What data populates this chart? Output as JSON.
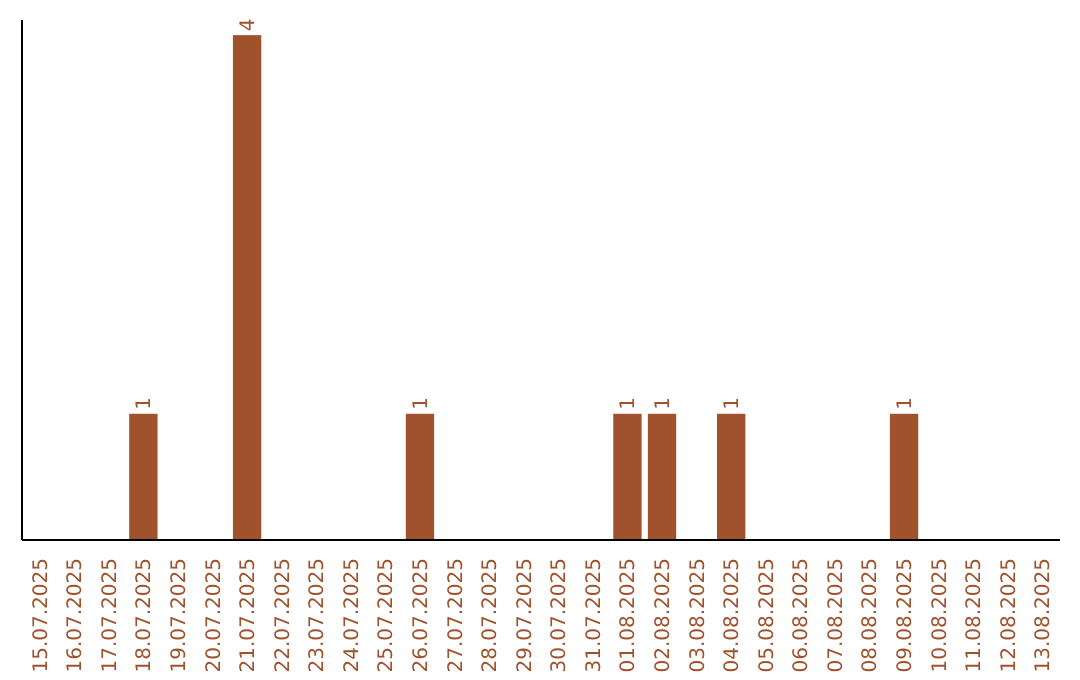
{
  "chart_data": {
    "type": "bar",
    "categories": [
      "15.07.2025",
      "16.07.2025",
      "17.07.2025",
      "18.07.2025",
      "19.07.2025",
      "20.07.2025",
      "21.07.2025",
      "22.07.2025",
      "23.07.2025",
      "24.07.2025",
      "25.07.2025",
      "26.07.2025",
      "27.07.2025",
      "28.07.2025",
      "29.07.2025",
      "30.07.2025",
      "31.07.2025",
      "01.08.2025",
      "02.08.2025",
      "03.08.2025",
      "04.08.2025",
      "05.08.2025",
      "06.08.2025",
      "07.08.2025",
      "08.08.2025",
      "09.08.2025",
      "10.08.2025",
      "11.08.2025",
      "12.08.2025",
      "13.08.2025"
    ],
    "values": [
      0,
      0,
      0,
      1,
      0,
      0,
      4,
      0,
      0,
      0,
      0,
      1,
      0,
      0,
      0,
      0,
      0,
      1,
      1,
      0,
      1,
      0,
      0,
      0,
      0,
      1,
      0,
      0,
      0,
      0
    ],
    "value_labels": [
      null,
      null,
      null,
      "1",
      null,
      null,
      "4",
      null,
      null,
      null,
      null,
      "1",
      null,
      null,
      null,
      null,
      null,
      "1",
      "1",
      null,
      "1",
      null,
      null,
      null,
      null,
      "1",
      null,
      null,
      null,
      null
    ],
    "color": "#a0522d",
    "tick_labels": "x"
  }
}
